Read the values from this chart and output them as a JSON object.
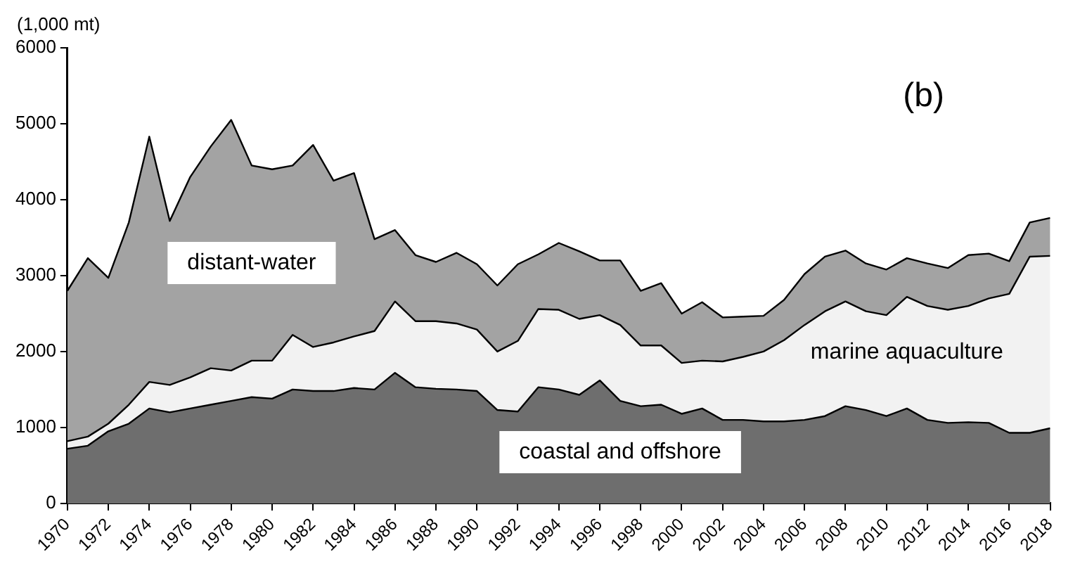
{
  "chart_data": {
    "type": "area",
    "title": "(b)",
    "ylabel": "(1,000 mt)",
    "stacked": true,
    "grid": false,
    "legend": false,
    "x": [
      1970,
      1971,
      1972,
      1973,
      1974,
      1975,
      1976,
      1977,
      1978,
      1979,
      1980,
      1981,
      1982,
      1983,
      1984,
      1985,
      1986,
      1987,
      1988,
      1989,
      1990,
      1991,
      1992,
      1993,
      1994,
      1995,
      1996,
      1997,
      1998,
      1999,
      2000,
      2001,
      2002,
      2003,
      2004,
      2005,
      2006,
      2007,
      2008,
      2009,
      2010,
      2011,
      2012,
      2013,
      2014,
      2015,
      2016,
      2017,
      2018
    ],
    "xlim": [
      1970,
      2018
    ],
    "xticks": [
      1970,
      1972,
      1974,
      1976,
      1978,
      1980,
      1982,
      1984,
      1986,
      1988,
      1990,
      1992,
      1994,
      1996,
      1998,
      2000,
      2002,
      2004,
      2006,
      2008,
      2010,
      2012,
      2014,
      2016,
      2018
    ],
    "ylim": [
      0,
      6000
    ],
    "yticks": [
      0,
      1000,
      2000,
      3000,
      4000,
      5000,
      6000
    ],
    "series": [
      {
        "name": "coastal and offshore",
        "color": "#6e6e6e",
        "values": [
          720,
          760,
          950,
          1050,
          1250,
          1200,
          1250,
          1300,
          1350,
          1400,
          1380,
          1500,
          1480,
          1480,
          1520,
          1500,
          1720,
          1530,
          1510,
          1500,
          1480,
          1230,
          1210,
          1530,
          1500,
          1430,
          1620,
          1350,
          1280,
          1300,
          1180,
          1250,
          1100,
          1100,
          1080,
          1080,
          1100,
          1150,
          1280,
          1230,
          1150,
          1250,
          1100,
          1060,
          1070,
          1060,
          930,
          930,
          990
        ]
      },
      {
        "name": "marine aquaculture",
        "color": "#f2f2f2",
        "values": [
          100,
          120,
          100,
          250,
          350,
          360,
          410,
          480,
          400,
          480,
          500,
          720,
          580,
          640,
          680,
          770,
          940,
          870,
          890,
          870,
          810,
          770,
          930,
          1030,
          1050,
          1000,
          860,
          1000,
          800,
          780,
          670,
          630,
          770,
          830,
          920,
          1070,
          1250,
          1380,
          1380,
          1300,
          1330,
          1470,
          1500,
          1490,
          1530,
          1640,
          1830,
          2320,
          2270
        ]
      },
      {
        "name": "distant-water",
        "color": "#a3a3a3",
        "values": [
          1980,
          2350,
          1920,
          2400,
          3230,
          2160,
          2640,
          2920,
          3300,
          2570,
          2520,
          2230,
          2660,
          2130,
          2150,
          1210,
          940,
          870,
          780,
          930,
          860,
          870,
          1010,
          720,
          880,
          890,
          720,
          850,
          720,
          820,
          650,
          770,
          580,
          530,
          470,
          530,
          670,
          720,
          670,
          630,
          600,
          510,
          560,
          550,
          670,
          590,
          430,
          450,
          500
        ]
      }
    ]
  }
}
